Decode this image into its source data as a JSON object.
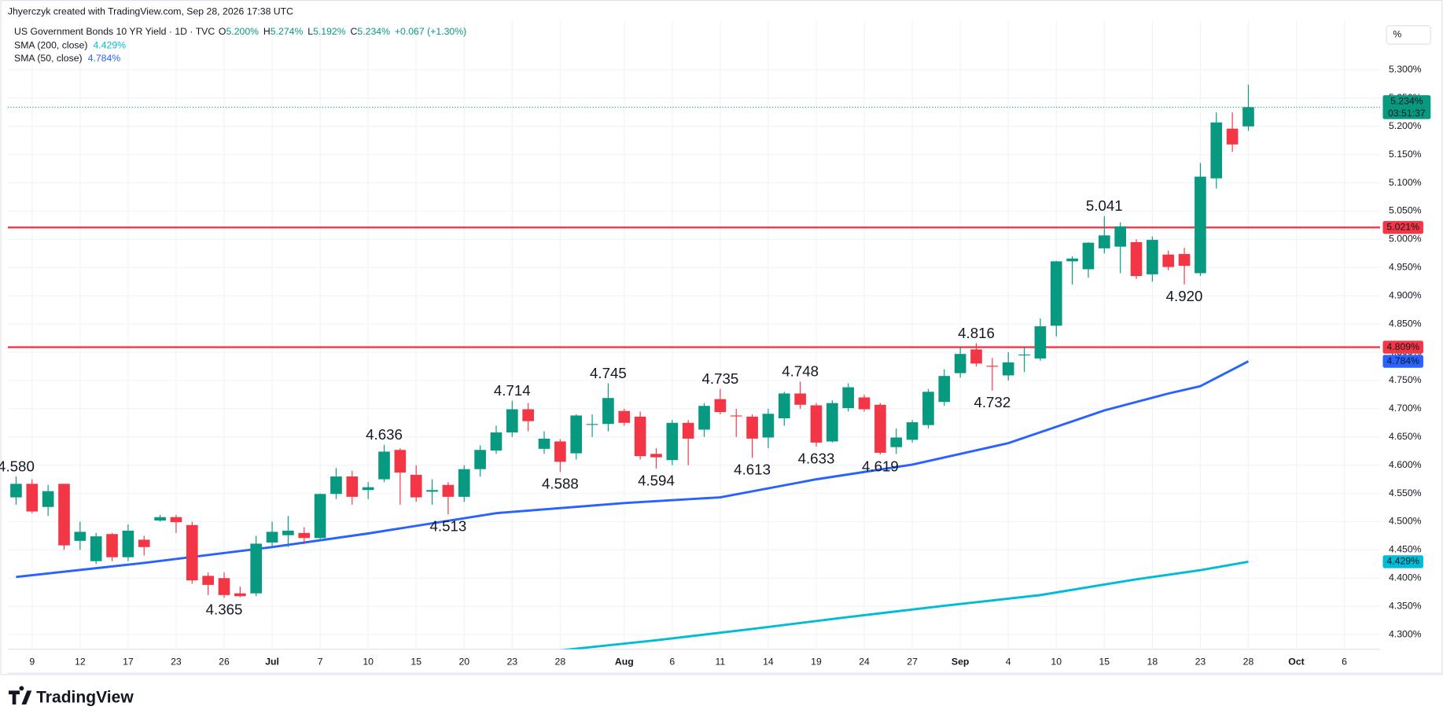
{
  "chart_data": {
    "type": "candlestick",
    "credit": "Jhyerczyk created with TradingView.com, Sep 28, 2026 17:38 UTC",
    "title": "US Government Bonds 10 YR Yield · 1D · TVC",
    "ohlc_labels": [
      {
        "key": "O",
        "value": "5.200%"
      },
      {
        "key": "H",
        "value": "5.274%"
      },
      {
        "key": "L",
        "value": "5.192%"
      },
      {
        "key": "C",
        "value": "5.234%"
      }
    ],
    "change_label": "+0.067 (+1.30%)",
    "unit_button": "%",
    "brand": "TradingView",
    "up_color": "#089981",
    "down_color": "#f23645",
    "open": [
      4.543,
      4.567,
      4.526,
      4.567,
      4.466,
      4.43,
      4.478,
      4.437,
      4.468,
      4.502,
      4.508,
      4.494,
      4.404,
      4.4,
      4.373,
      4.373,
      4.463,
      4.476,
      4.48,
      4.471,
      4.549,
      4.58,
      4.556,
      4.575,
      4.627,
      4.583,
      4.553,
      4.565,
      4.544,
      4.593,
      4.626,
      4.658,
      4.699,
      4.629,
      4.642,
      4.621,
      4.672,
      4.673,
      4.696,
      4.686,
      4.62,
      4.609,
      4.675,
      4.663,
      4.717,
      4.688,
      4.686,
      4.649,
      4.683,
      4.727,
      4.706,
      4.642,
      4.701,
      4.72,
      4.707,
      4.632,
      4.645,
      4.671,
      4.712,
      4.763,
      4.805,
      4.776,
      4.759,
      4.795,
      4.789,
      4.847,
      4.961,
      4.947,
      4.984,
      4.987,
      4.995,
      4.938,
      4.973,
      4.974,
      4.94,
      5.108,
      5.196,
      5.2
    ],
    "high": [
      4.58,
      4.575,
      4.565,
      4.567,
      4.5,
      4.48,
      4.48,
      4.495,
      4.475,
      4.512,
      4.512,
      4.5,
      4.41,
      4.41,
      4.385,
      4.475,
      4.5,
      4.51,
      4.49,
      4.55,
      4.595,
      4.59,
      4.57,
      4.636,
      4.63,
      4.6,
      4.575,
      4.57,
      4.6,
      4.635,
      4.67,
      4.714,
      4.71,
      4.66,
      4.646,
      4.69,
      4.69,
      4.745,
      4.7,
      4.695,
      4.63,
      4.68,
      4.68,
      4.71,
      4.735,
      4.7,
      4.69,
      4.7,
      4.73,
      4.748,
      4.71,
      4.715,
      4.745,
      4.725,
      4.71,
      4.665,
      4.68,
      4.735,
      4.77,
      4.81,
      4.816,
      4.79,
      4.8,
      4.81,
      4.86,
      4.962,
      4.97,
      4.995,
      5.041,
      5.03,
      5.0,
      5.005,
      4.98,
      4.985,
      5.135,
      5.225,
      5.225,
      5.274
    ],
    "low": [
      4.53,
      4.515,
      4.51,
      4.45,
      4.45,
      4.425,
      4.43,
      4.43,
      4.44,
      4.5,
      4.48,
      4.39,
      4.37,
      4.365,
      4.366,
      4.368,
      4.455,
      4.455,
      4.46,
      4.465,
      4.54,
      4.53,
      4.54,
      4.57,
      4.53,
      4.535,
      4.53,
      4.513,
      4.535,
      4.58,
      4.62,
      4.65,
      4.66,
      4.62,
      4.588,
      4.61,
      4.65,
      4.66,
      4.67,
      4.61,
      4.594,
      4.6,
      4.6,
      4.65,
      4.69,
      4.65,
      4.613,
      4.63,
      4.67,
      4.7,
      4.633,
      4.64,
      4.695,
      4.695,
      4.619,
      4.62,
      4.64,
      4.665,
      4.705,
      4.755,
      4.775,
      4.732,
      4.75,
      4.765,
      4.785,
      4.828,
      4.92,
      4.932,
      4.975,
      4.94,
      4.93,
      4.925,
      4.945,
      4.92,
      4.935,
      5.09,
      5.155,
      5.192
    ],
    "close": [
      4.567,
      4.518,
      4.554,
      4.458,
      4.482,
      4.474,
      4.437,
      4.484,
      4.455,
      4.508,
      4.499,
      4.396,
      4.388,
      4.37,
      4.368,
      4.461,
      4.482,
      4.484,
      4.471,
      4.549,
      4.58,
      4.544,
      4.561,
      4.624,
      4.587,
      4.543,
      4.556,
      4.544,
      4.593,
      4.627,
      4.658,
      4.699,
      4.678,
      4.647,
      4.606,
      4.688,
      4.673,
      4.719,
      4.675,
      4.616,
      4.614,
      4.675,
      4.647,
      4.705,
      4.694,
      4.687,
      4.647,
      4.691,
      4.727,
      4.707,
      4.64,
      4.71,
      4.738,
      4.699,
      4.622,
      4.649,
      4.676,
      4.73,
      4.758,
      4.797,
      4.78,
      4.775,
      4.782,
      4.796,
      4.846,
      4.961,
      4.966,
      4.994,
      5.007,
      5.023,
      4.935,
      4.999,
      4.951,
      4.953,
      5.111,
      5.207,
      5.168,
      5.234
    ],
    "series": [
      {
        "name": "SMA (200, close)",
        "color": "#00bcd4",
        "value_label": "4.429%",
        "x": [
          34,
          40,
          46,
          52,
          58,
          64,
          70,
          74,
          77
        ],
        "values": [
          4.272,
          4.29,
          4.31,
          4.331,
          4.351,
          4.37,
          4.398,
          4.414,
          4.429
        ]
      },
      {
        "name": "SMA (50, close)",
        "color": "#2962ff",
        "value_label": "4.784%",
        "x": [
          0,
          8,
          16,
          22,
          30,
          38,
          44,
          50,
          56,
          62,
          68,
          72,
          74,
          77
        ],
        "values": [
          4.402,
          4.427,
          4.455,
          4.479,
          4.515,
          4.533,
          4.543,
          4.575,
          4.601,
          4.639,
          4.697,
          4.727,
          4.74,
          4.784
        ]
      }
    ],
    "hlines": [
      {
        "value": 5.021,
        "label": "5.021%",
        "color": "#f23645"
      },
      {
        "value": 4.809,
        "label": "4.809%",
        "color": "#f23645"
      }
    ],
    "price_line": {
      "value": 5.234,
      "label": "5.234%",
      "countdown": "03:51:37",
      "color": "#089981"
    },
    "annotations": [
      {
        "index": 0,
        "value": 4.58,
        "label": "4.580",
        "side": "above"
      },
      {
        "index": 13,
        "value": 4.365,
        "label": "4.365",
        "side": "below"
      },
      {
        "index": 23,
        "value": 4.636,
        "label": "4.636",
        "side": "above"
      },
      {
        "index": 27,
        "value": 4.513,
        "label": "4.513",
        "side": "below"
      },
      {
        "index": 31,
        "value": 4.714,
        "label": "4.714",
        "side": "above"
      },
      {
        "index": 34,
        "value": 4.588,
        "label": "4.588",
        "side": "below"
      },
      {
        "index": 37,
        "value": 4.745,
        "label": "4.745",
        "side": "above"
      },
      {
        "index": 40,
        "value": 4.594,
        "label": "4.594",
        "side": "below"
      },
      {
        "index": 44,
        "value": 4.735,
        "label": "4.735",
        "side": "above"
      },
      {
        "index": 46,
        "value": 4.613,
        "label": "4.613",
        "side": "below"
      },
      {
        "index": 49,
        "value": 4.748,
        "label": "4.748",
        "side": "above"
      },
      {
        "index": 50,
        "value": 4.633,
        "label": "4.633",
        "side": "below"
      },
      {
        "index": 54,
        "value": 4.619,
        "label": "4.619",
        "side": "below"
      },
      {
        "index": 60,
        "value": 4.816,
        "label": "4.816",
        "side": "above"
      },
      {
        "index": 61,
        "value": 4.732,
        "label": "4.732",
        "side": "below"
      },
      {
        "index": 68,
        "value": 5.041,
        "label": "5.041",
        "side": "above"
      },
      {
        "index": 73,
        "value": 4.92,
        "label": "4.920",
        "side": "below"
      }
    ],
    "xlim": [
      -0.52,
      85.23
    ],
    "xticks": [
      {
        "value": 1,
        "label": "9"
      },
      {
        "value": 4,
        "label": "12"
      },
      {
        "value": 7,
        "label": "17"
      },
      {
        "value": 10,
        "label": "23"
      },
      {
        "value": 13,
        "label": "26"
      },
      {
        "value": 16,
        "label": "Jul"
      },
      {
        "value": 19,
        "label": "7"
      },
      {
        "value": 22,
        "label": "10"
      },
      {
        "value": 25,
        "label": "15"
      },
      {
        "value": 28,
        "label": "20"
      },
      {
        "value": 31,
        "label": "23"
      },
      {
        "value": 34,
        "label": "28"
      },
      {
        "value": 38,
        "label": "Aug"
      },
      {
        "value": 41,
        "label": "6"
      },
      {
        "value": 44,
        "label": "11"
      },
      {
        "value": 47,
        "label": "14"
      },
      {
        "value": 50,
        "label": "19"
      },
      {
        "value": 53,
        "label": "24"
      },
      {
        "value": 56,
        "label": "27"
      },
      {
        "value": 59,
        "label": "Sep"
      },
      {
        "value": 62,
        "label": "4"
      },
      {
        "value": 65,
        "label": "10"
      },
      {
        "value": 68,
        "label": "15"
      },
      {
        "value": 71,
        "label": "18"
      },
      {
        "value": 74,
        "label": "23"
      },
      {
        "value": 77,
        "label": "28"
      },
      {
        "value": 80,
        "label": "Oct"
      },
      {
        "value": 83,
        "label": "6"
      }
    ],
    "ylim": [
      4.274,
      5.388
    ],
    "yticks": [
      {
        "value": 4.3,
        "label": "4.300%"
      },
      {
        "value": 4.35,
        "label": "4.350%"
      },
      {
        "value": 4.4,
        "label": "4.400%"
      },
      {
        "value": 4.45,
        "label": "4.450%"
      },
      {
        "value": 4.5,
        "label": "4.500%"
      },
      {
        "value": 4.55,
        "label": "4.550%"
      },
      {
        "value": 4.6,
        "label": "4.600%"
      },
      {
        "value": 4.65,
        "label": "4.650%"
      },
      {
        "value": 4.7,
        "label": "4.700%"
      },
      {
        "value": 4.75,
        "label": "4.750%"
      },
      {
        "value": 4.8,
        "label": "4.800%"
      },
      {
        "value": 4.85,
        "label": "4.850%"
      },
      {
        "value": 4.9,
        "label": "4.900%"
      },
      {
        "value": 4.95,
        "label": "4.950%"
      },
      {
        "value": 5.0,
        "label": "5.000%"
      },
      {
        "value": 5.05,
        "label": "5.050%"
      },
      {
        "value": 5.1,
        "label": "5.100%"
      },
      {
        "value": 5.15,
        "label": "5.150%"
      },
      {
        "value": 5.2,
        "label": "5.200%"
      },
      {
        "value": 5.25,
        "label": "5.250%"
      },
      {
        "value": 5.3,
        "label": "5.300%"
      }
    ],
    "grid": true
  }
}
